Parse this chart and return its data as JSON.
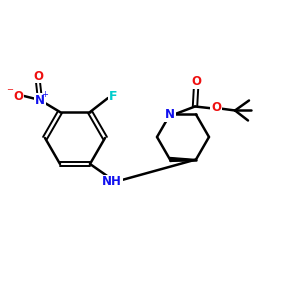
{
  "bg_color": "#ffffff",
  "bond_color": "#000000",
  "atom_colors": {
    "N": "#1010ee",
    "O": "#ee1010",
    "F": "#00cccc",
    "C": "#000000"
  },
  "lw": 1.8,
  "lw_double": 1.4,
  "figsize": [
    3.0,
    3.0
  ],
  "dpi": 100,
  "xlim": [
    0,
    300
  ],
  "ylim": [
    0,
    300
  ]
}
